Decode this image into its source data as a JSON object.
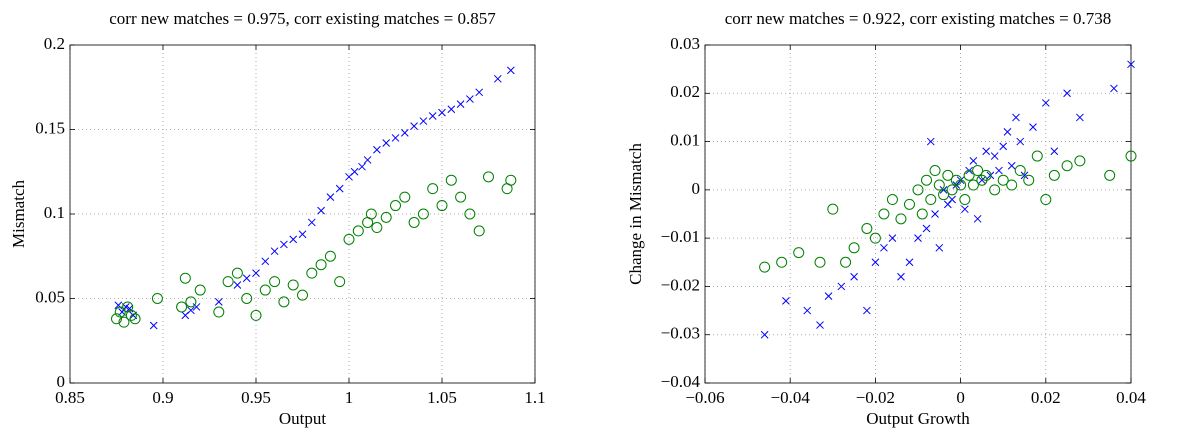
{
  "chart_data": [
    {
      "type": "scatter",
      "title": "corr new matches = 0.975, corr existing matches = 0.857",
      "x_label": "Output",
      "y_label": "Mismatch",
      "grid": true,
      "xlim": [
        0.85,
        1.1
      ],
      "xticks": [
        0.85,
        0.9,
        0.95,
        1,
        1.05,
        1.1
      ],
      "ylim": [
        0,
        0.2
      ],
      "yticks": [
        0,
        0.05,
        0.1,
        0.15,
        0.2
      ],
      "series": [
        {
          "color": "#0000ff",
          "marker": "x",
          "x": [
            0.876,
            0.878,
            0.88,
            0.882,
            0.884,
            0.895,
            0.912,
            0.915,
            0.918,
            0.93,
            0.94,
            0.945,
            0.95,
            0.955,
            0.96,
            0.965,
            0.97,
            0.975,
            0.98,
            0.985,
            0.99,
            0.995,
            1.0,
            1.003,
            1.007,
            1.01,
            1.015,
            1.02,
            1.025,
            1.03,
            1.035,
            1.04,
            1.045,
            1.05,
            1.055,
            1.06,
            1.065,
            1.07,
            1.08,
            1.087
          ],
          "values": [
            0.046,
            0.042,
            0.045,
            0.044,
            0.04,
            0.034,
            0.04,
            0.043,
            0.045,
            0.048,
            0.058,
            0.062,
            0.065,
            0.072,
            0.078,
            0.082,
            0.085,
            0.088,
            0.095,
            0.102,
            0.11,
            0.115,
            0.122,
            0.125,
            0.128,
            0.132,
            0.138,
            0.142,
            0.145,
            0.148,
            0.152,
            0.155,
            0.158,
            0.16,
            0.162,
            0.165,
            0.168,
            0.172,
            0.18,
            0.185
          ]
        },
        {
          "color": "#008000",
          "marker": "o",
          "x": [
            0.875,
            0.877,
            0.879,
            0.881,
            0.883,
            0.885,
            0.897,
            0.91,
            0.912,
            0.915,
            0.92,
            0.93,
            0.935,
            0.94,
            0.945,
            0.95,
            0.955,
            0.96,
            0.965,
            0.97,
            0.975,
            0.98,
            0.985,
            0.99,
            0.995,
            1.0,
            1.005,
            1.01,
            1.012,
            1.015,
            1.02,
            1.025,
            1.03,
            1.035,
            1.04,
            1.045,
            1.05,
            1.055,
            1.06,
            1.065,
            1.07,
            1.075,
            1.085,
            1.087
          ],
          "values": [
            0.038,
            0.042,
            0.036,
            0.045,
            0.04,
            0.038,
            0.05,
            0.045,
            0.062,
            0.048,
            0.055,
            0.042,
            0.06,
            0.065,
            0.05,
            0.04,
            0.055,
            0.06,
            0.048,
            0.058,
            0.052,
            0.065,
            0.07,
            0.075,
            0.06,
            0.085,
            0.09,
            0.095,
            0.1,
            0.092,
            0.098,
            0.105,
            0.11,
            0.095,
            0.1,
            0.115,
            0.105,
            0.12,
            0.11,
            0.1,
            0.09,
            0.122,
            0.115,
            0.12
          ]
        }
      ]
    },
    {
      "type": "scatter",
      "title": "corr new matches = 0.922, corr existing matches = 0.738",
      "x_label": "Output Growth",
      "y_label": "Change in Mismatch",
      "grid": true,
      "xlim": [
        -0.06,
        0.04
      ],
      "xticks": [
        {
          "value": -0.06,
          "label": "−0.06"
        },
        {
          "value": -0.04,
          "label": "−0.04"
        },
        {
          "value": -0.02,
          "label": "−0.02"
        },
        0,
        0.02,
        0.04
      ],
      "ylim": [
        -0.04,
        0.03
      ],
      "yticks": [
        {
          "value": -0.04,
          "label": "−0.04"
        },
        {
          "value": -0.03,
          "label": "−0.03"
        },
        {
          "value": -0.02,
          "label": "−0.02"
        },
        {
          "value": -0.01,
          "label": "−0.01"
        },
        0,
        0.01,
        0.02,
        0.03
      ],
      "series": [
        {
          "color": "#0000ff",
          "marker": "x",
          "x": [
            -0.046,
            -0.041,
            -0.036,
            -0.033,
            -0.031,
            -0.028,
            -0.025,
            -0.022,
            -0.02,
            -0.018,
            -0.016,
            -0.014,
            -0.012,
            -0.01,
            -0.008,
            -0.007,
            -0.006,
            -0.005,
            -0.004,
            -0.003,
            -0.002,
            -0.001,
            0,
            0.001,
            0.002,
            0.003,
            0.004,
            0.005,
            0.006,
            0.007,
            0.008,
            0.009,
            0.01,
            0.011,
            0.012,
            0.013,
            0.014,
            0.015,
            0.017,
            0.02,
            0.022,
            0.025,
            0.028,
            0.036,
            0.04
          ],
          "values": [
            -0.03,
            -0.023,
            -0.025,
            -0.028,
            -0.022,
            -0.02,
            -0.018,
            -0.025,
            -0.015,
            -0.012,
            -0.01,
            -0.018,
            -0.015,
            -0.01,
            -0.008,
            0.01,
            -0.005,
            -0.012,
            0,
            -0.003,
            -0.002,
            0.001,
            0.002,
            -0.004,
            0.004,
            0.006,
            -0.006,
            0.002,
            0.008,
            0.003,
            0.007,
            0.004,
            0.009,
            0.012,
            0.005,
            0.015,
            0.01,
            0.003,
            0.013,
            0.018,
            0.008,
            0.02,
            0.015,
            0.021,
            0.026
          ]
        },
        {
          "color": "#008000",
          "marker": "o",
          "x": [
            -0.046,
            -0.042,
            -0.038,
            -0.033,
            -0.03,
            -0.027,
            -0.025,
            -0.022,
            -0.02,
            -0.018,
            -0.016,
            -0.014,
            -0.012,
            -0.01,
            -0.009,
            -0.008,
            -0.007,
            -0.006,
            -0.005,
            -0.004,
            -0.003,
            -0.002,
            -0.001,
            0,
            0.001,
            0.002,
            0.003,
            0.004,
            0.005,
            0.006,
            0.008,
            0.01,
            0.012,
            0.014,
            0.016,
            0.018,
            0.02,
            0.022,
            0.025,
            0.028,
            0.035,
            0.04
          ],
          "values": [
            -0.016,
            -0.015,
            -0.013,
            -0.015,
            -0.004,
            -0.015,
            -0.012,
            -0.008,
            -0.01,
            -0.005,
            -0.002,
            -0.006,
            -0.003,
            0,
            -0.005,
            0.002,
            -0.002,
            0.004,
            0.001,
            -0.001,
            0.003,
            0,
            0.002,
            0.001,
            -0.002,
            0.003,
            0.001,
            0.004,
            0.002,
            0.003,
            0,
            0.002,
            0.001,
            0.004,
            0.002,
            0.007,
            -0.002,
            0.003,
            0.005,
            0.006,
            0.003,
            0.007
          ]
        }
      ]
    }
  ]
}
